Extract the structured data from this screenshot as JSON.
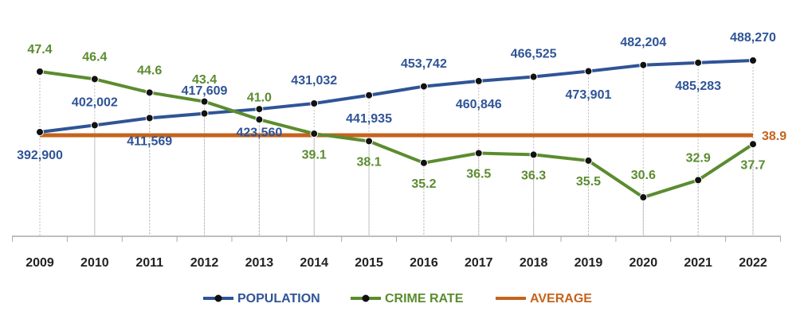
{
  "chart_data": {
    "type": "line",
    "categories": [
      "2009",
      "2010",
      "2011",
      "2012",
      "2013",
      "2014",
      "2015",
      "2016",
      "2017",
      "2018",
      "2019",
      "2020",
      "2021",
      "2022"
    ],
    "series": [
      {
        "name": "POPULATION",
        "color": "#2f5496",
        "values": [
          392900,
          402002,
          411569,
          417609,
          423560,
          431032,
          441935,
          453742,
          460846,
          466525,
          473901,
          482204,
          485283,
          488270
        ],
        "value_labels": [
          "392,900",
          "402,002",
          "411,569",
          "417,609",
          "423,560",
          "431,032",
          "441,935",
          "453,742",
          "460,846",
          "466,525",
          "473,901",
          "482,204",
          "485,283",
          "488,270"
        ]
      },
      {
        "name": "CRIME RATE",
        "color": "#5b8c2f",
        "axis": "y2",
        "values": [
          47.4,
          46.4,
          44.6,
          43.4,
          41.0,
          39.1,
          38.1,
          35.2,
          36.5,
          36.3,
          35.5,
          30.6,
          32.9,
          37.7
        ],
        "value_labels": [
          "47.4",
          "46.4",
          "44.6",
          "43.4",
          "41.0",
          "39.1",
          "38.1",
          "35.2",
          "36.5",
          "36.3",
          "35.5",
          "30.6",
          "32.9",
          "37.7"
        ]
      }
    ],
    "average": {
      "name": "AVERAGE",
      "color": "#c5631c",
      "value": 38.9
    }
  }
}
